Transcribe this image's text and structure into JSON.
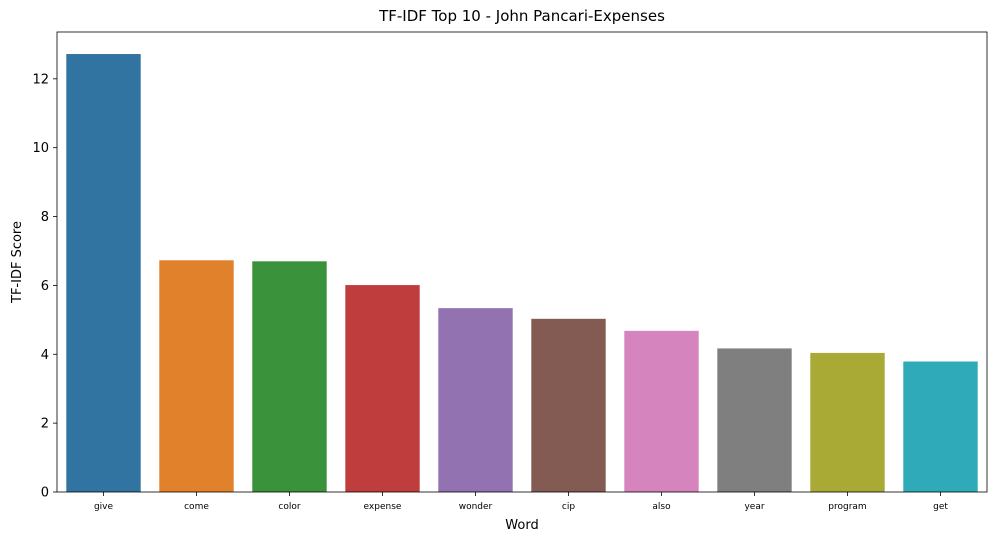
{
  "chart_data": {
    "type": "bar",
    "title": "TF-IDF Top 10 - John Pancari-Expenses",
    "xlabel": "Word",
    "ylabel": "TF-IDF Score",
    "categories": [
      "give",
      "come",
      "color",
      "expense",
      "wonder",
      "cip",
      "also",
      "year",
      "program",
      "get"
    ],
    "values": [
      12.72,
      6.73,
      6.7,
      6.01,
      5.34,
      5.03,
      4.68,
      4.17,
      4.04,
      3.79
    ],
    "colors": [
      "#3274a1",
      "#e1812c",
      "#3a923a",
      "#c03d3e",
      "#9372b2",
      "#845b53",
      "#d684bd",
      "#7f7f7f",
      "#a9aa35",
      "#2eaab8"
    ],
    "ylim": [
      0,
      13.36
    ],
    "yticks": [
      0,
      2,
      4,
      6,
      8,
      10,
      12
    ],
    "grid": false,
    "legend": "none"
  }
}
